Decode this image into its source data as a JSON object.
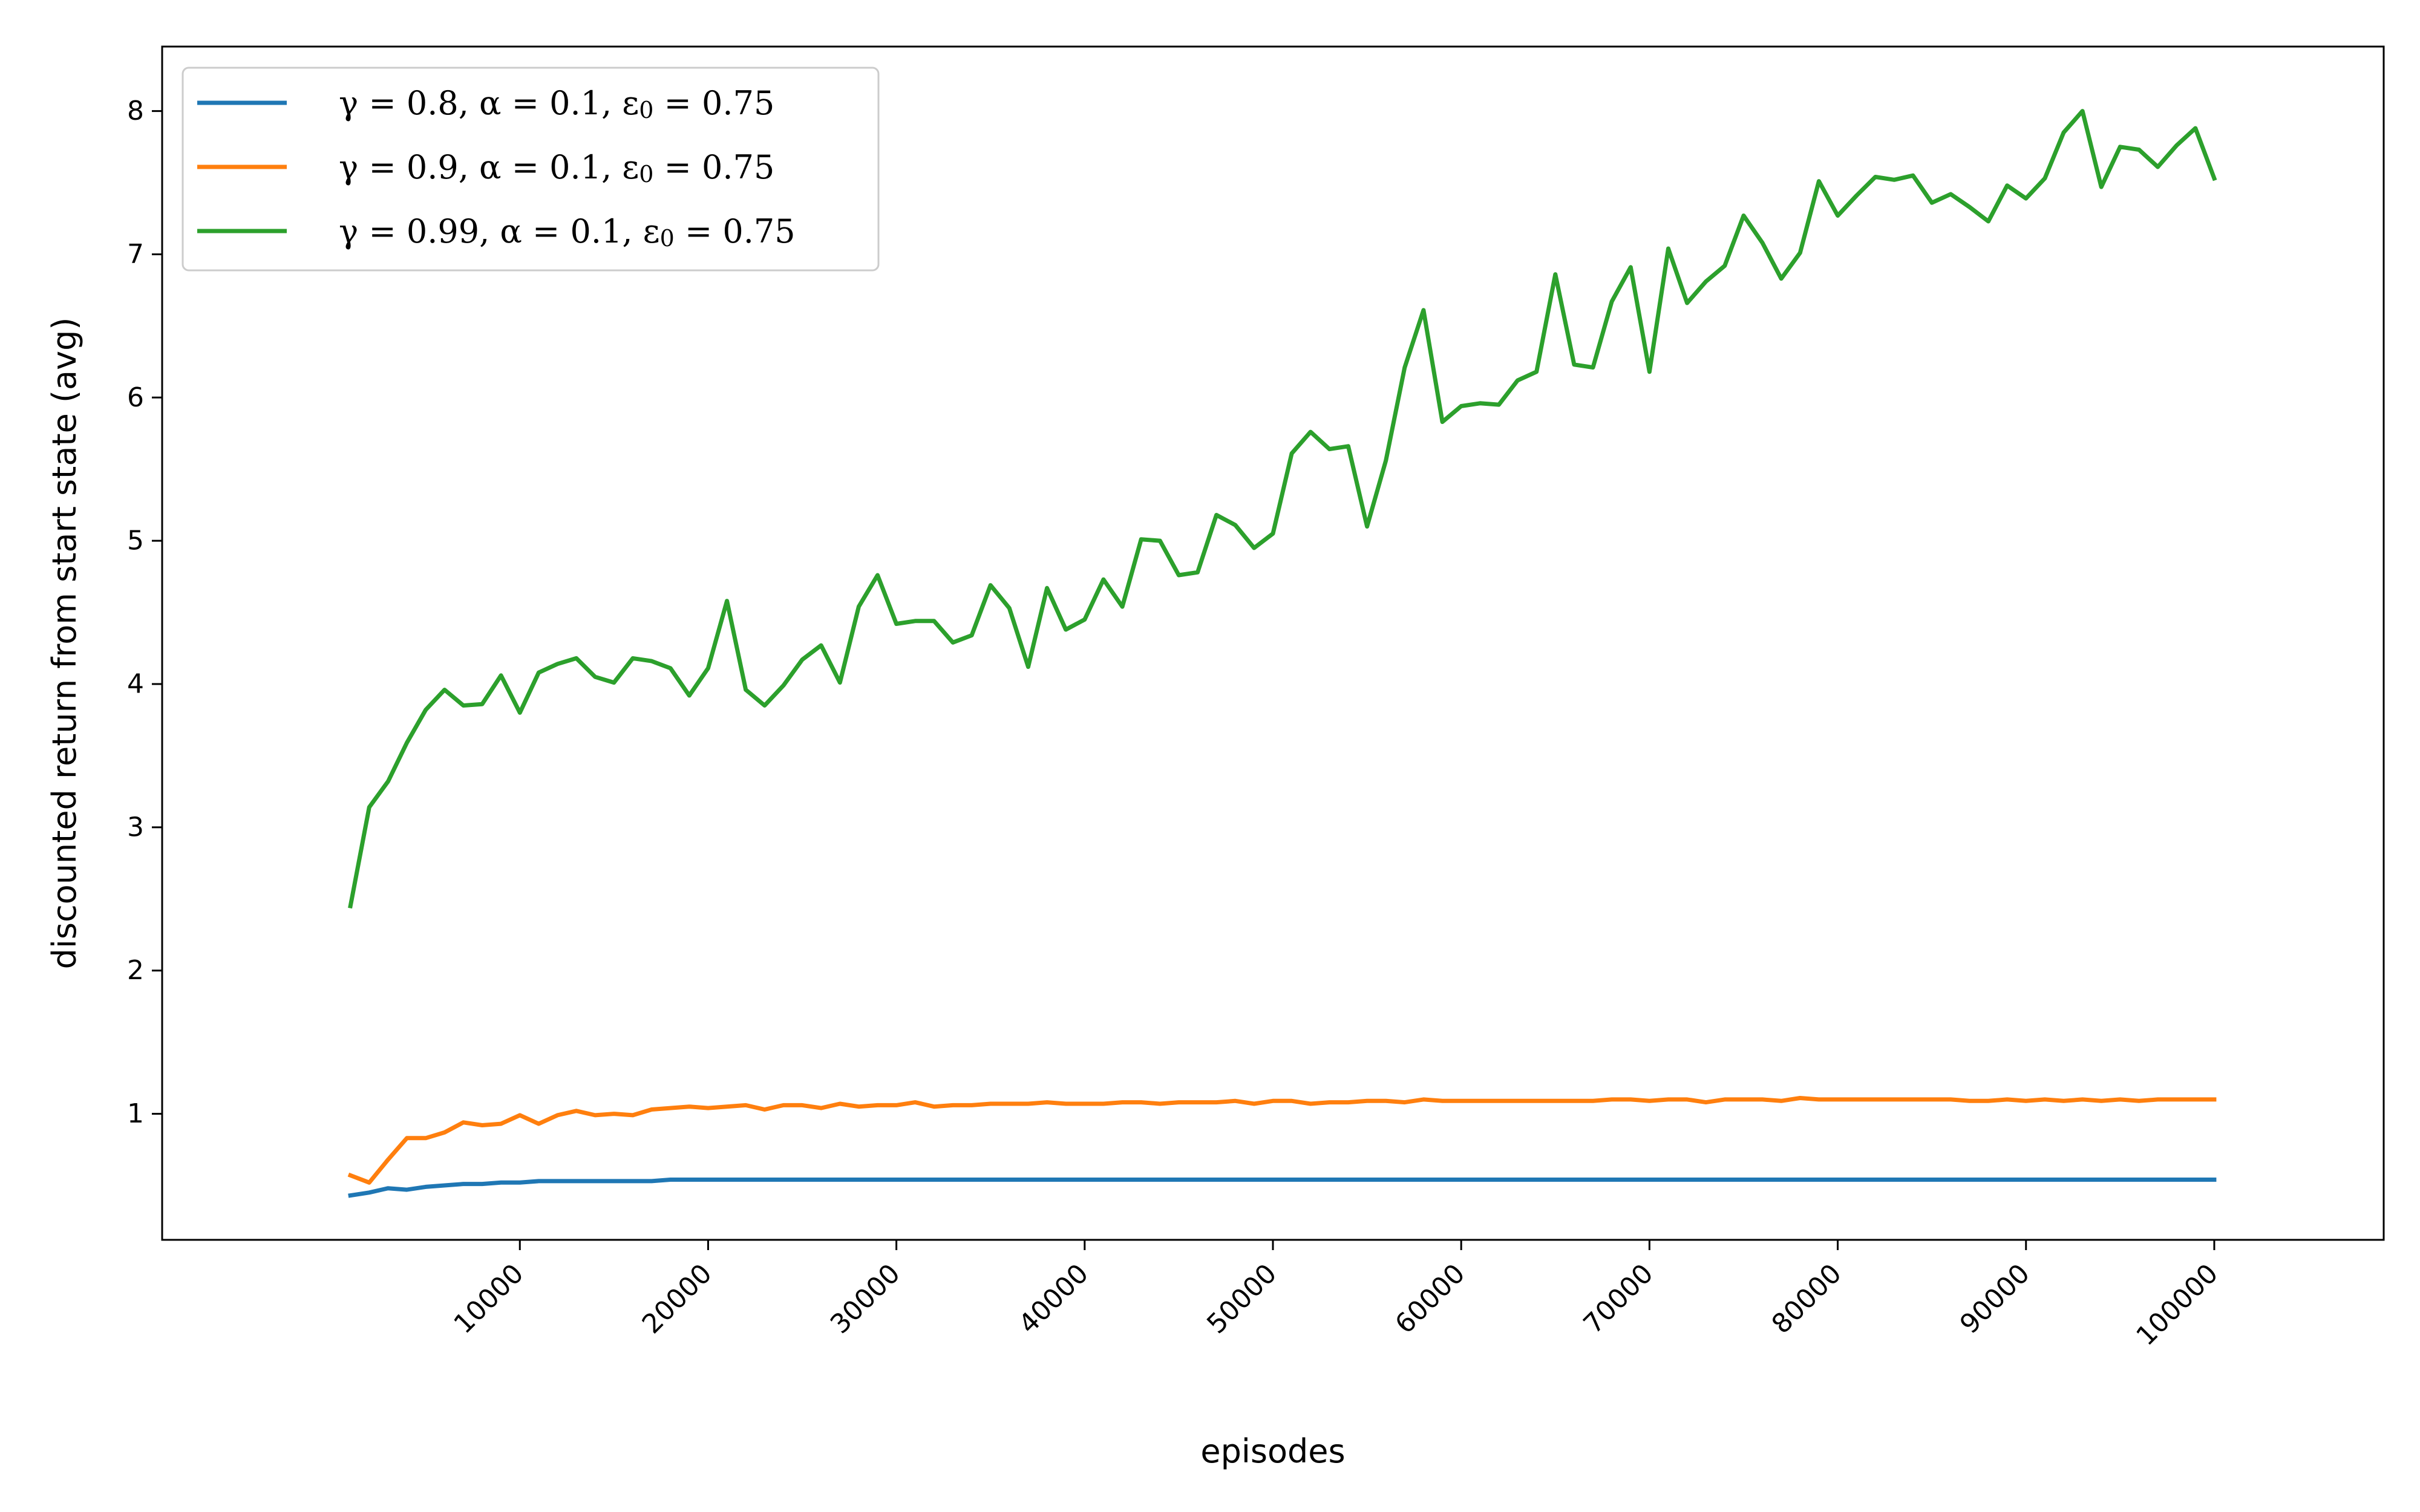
{
  "chart_data": {
    "type": "line",
    "xlabel": "episodes",
    "ylabel": "discounted return from start state (avg)",
    "xlim": [
      -9000,
      109000
    ],
    "ylim": [
      0.12,
      8.45
    ],
    "xticks": [
      10000,
      20000,
      30000,
      40000,
      50000,
      60000,
      70000,
      80000,
      90000,
      100000
    ],
    "yticks": [
      1,
      2,
      3,
      4,
      5,
      6,
      7,
      8
    ],
    "grid": false,
    "legend_position": "top-left",
    "x": [
      1000,
      2000,
      3000,
      4000,
      5000,
      6000,
      7000,
      8000,
      9000,
      10000,
      11000,
      12000,
      13000,
      14000,
      15000,
      16000,
      17000,
      18000,
      19000,
      20000,
      21000,
      22000,
      23000,
      24000,
      25000,
      26000,
      27000,
      28000,
      29000,
      30000,
      31000,
      32000,
      33000,
      34000,
      35000,
      36000,
      37000,
      38000,
      39000,
      40000,
      41000,
      42000,
      43000,
      44000,
      45000,
      46000,
      47000,
      48000,
      49000,
      50000,
      51000,
      52000,
      53000,
      54000,
      55000,
      56000,
      57000,
      58000,
      59000,
      60000,
      61000,
      62000,
      63000,
      64000,
      65000,
      66000,
      67000,
      68000,
      69000,
      70000,
      71000,
      72000,
      73000,
      74000,
      75000,
      76000,
      77000,
      78000,
      79000,
      80000,
      81000,
      82000,
      83000,
      84000,
      85000,
      86000,
      87000,
      88000,
      89000,
      90000,
      91000,
      92000,
      93000,
      94000,
      95000,
      96000,
      97000,
      98000,
      99000,
      100000
    ],
    "series": [
      {
        "name": "γ = 0.8, α = 0.1, ε₀ = 0.75",
        "legend_parts": [
          "γ = 0.8, α = 0.1, ε",
          "0",
          " = 0.75"
        ],
        "color": "#1f77b4",
        "values": [
          0.43,
          0.45,
          0.48,
          0.47,
          0.49,
          0.5,
          0.51,
          0.51,
          0.52,
          0.52,
          0.53,
          0.53,
          0.53,
          0.53,
          0.53,
          0.53,
          0.53,
          0.54,
          0.54,
          0.54,
          0.54,
          0.54,
          0.54,
          0.54,
          0.54,
          0.54,
          0.54,
          0.54,
          0.54,
          0.54,
          0.54,
          0.54,
          0.54,
          0.54,
          0.54,
          0.54,
          0.54,
          0.54,
          0.54,
          0.54,
          0.54,
          0.54,
          0.54,
          0.54,
          0.54,
          0.54,
          0.54,
          0.54,
          0.54,
          0.54,
          0.54,
          0.54,
          0.54,
          0.54,
          0.54,
          0.54,
          0.54,
          0.54,
          0.54,
          0.54,
          0.54,
          0.54,
          0.54,
          0.54,
          0.54,
          0.54,
          0.54,
          0.54,
          0.54,
          0.54,
          0.54,
          0.54,
          0.54,
          0.54,
          0.54,
          0.54,
          0.54,
          0.54,
          0.54,
          0.54,
          0.54,
          0.54,
          0.54,
          0.54,
          0.54,
          0.54,
          0.54,
          0.54,
          0.54,
          0.54,
          0.54,
          0.54,
          0.54,
          0.54,
          0.54,
          0.54,
          0.54,
          0.54,
          0.54,
          0.54
        ]
      },
      {
        "name": "γ = 0.9, α = 0.1, ε₀ = 0.75",
        "legend_parts": [
          "γ = 0.9, α = 0.1, ε",
          "0",
          " = 0.75"
        ],
        "color": "#ff7f0e",
        "values": [
          0.57,
          0.52,
          0.68,
          0.83,
          0.83,
          0.87,
          0.94,
          0.92,
          0.93,
          0.99,
          0.93,
          0.99,
          1.02,
          0.99,
          1.0,
          0.99,
          1.03,
          1.04,
          1.05,
          1.04,
          1.05,
          1.06,
          1.03,
          1.06,
          1.06,
          1.04,
          1.07,
          1.05,
          1.06,
          1.06,
          1.08,
          1.05,
          1.06,
          1.06,
          1.07,
          1.07,
          1.07,
          1.08,
          1.07,
          1.07,
          1.07,
          1.08,
          1.08,
          1.07,
          1.08,
          1.08,
          1.08,
          1.09,
          1.07,
          1.09,
          1.09,
          1.07,
          1.08,
          1.08,
          1.09,
          1.09,
          1.08,
          1.1,
          1.09,
          1.09,
          1.09,
          1.09,
          1.09,
          1.09,
          1.09,
          1.09,
          1.09,
          1.1,
          1.1,
          1.09,
          1.1,
          1.1,
          1.08,
          1.1,
          1.1,
          1.1,
          1.09,
          1.11,
          1.1,
          1.1,
          1.1,
          1.1,
          1.1,
          1.1,
          1.1,
          1.1,
          1.09,
          1.09,
          1.1,
          1.09,
          1.1,
          1.09,
          1.1,
          1.09,
          1.1,
          1.09,
          1.1,
          1.1,
          1.1,
          1.1
        ]
      },
      {
        "name": "γ = 0.99, α = 0.1, ε₀ = 0.75",
        "legend_parts": [
          "γ = 0.99, α = 0.1, ε",
          "0",
          " = 0.75"
        ],
        "color": "#2ca02c",
        "values": [
          2.45,
          3.14,
          3.32,
          3.59,
          3.82,
          3.96,
          3.85,
          3.86,
          4.06,
          3.8,
          4.08,
          4.14,
          4.18,
          4.05,
          4.01,
          4.18,
          4.16,
          4.11,
          3.92,
          4.11,
          4.58,
          3.96,
          3.85,
          3.99,
          4.17,
          4.27,
          4.01,
          4.54,
          4.76,
          4.42,
          4.44,
          4.44,
          4.29,
          4.34,
          4.69,
          4.53,
          4.12,
          4.67,
          4.38,
          4.45,
          4.73,
          4.54,
          5.01,
          5.0,
          4.76,
          4.78,
          5.18,
          5.11,
          4.95,
          5.05,
          5.61,
          5.76,
          5.64,
          5.66,
          5.1,
          5.56,
          6.21,
          6.61,
          5.83,
          5.94,
          5.96,
          5.95,
          6.12,
          6.18,
          6.86,
          6.23,
          6.21,
          6.67,
          6.91,
          6.18,
          7.04,
          6.66,
          6.81,
          6.92,
          7.27,
          7.08,
          6.83,
          7.01,
          7.51,
          7.27,
          7.41,
          7.54,
          7.52,
          7.55,
          7.36,
          7.42,
          7.33,
          7.23,
          7.48,
          7.39,
          7.53,
          7.85,
          8.0,
          7.47,
          7.75,
          7.73,
          7.61,
          7.76,
          7.88,
          7.53
        ]
      }
    ]
  }
}
